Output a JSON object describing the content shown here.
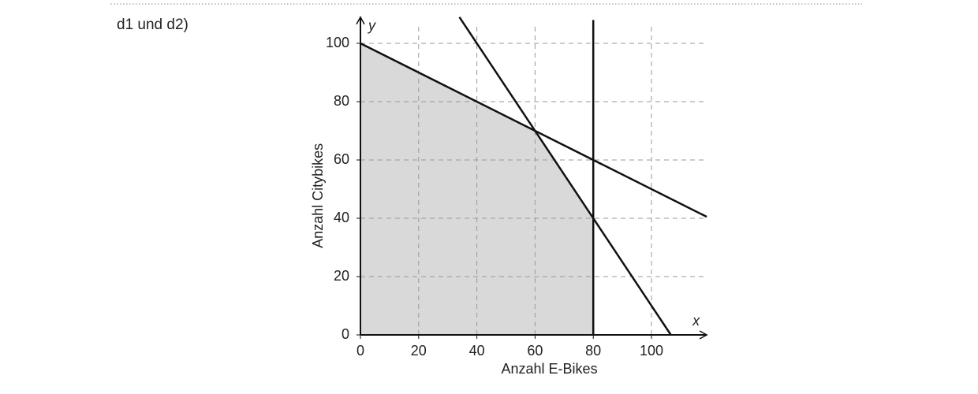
{
  "label": "d1 und d2)",
  "chart_data": {
    "type": "line",
    "x_label": "Anzahl E-Bikes",
    "y_label": "Anzahl Citybikes",
    "x_axis_letter": "x",
    "y_axis_letter": "y",
    "xlim": [
      0,
      119
    ],
    "ylim": [
      0,
      109
    ],
    "xticks": [
      0,
      20,
      40,
      60,
      80,
      100
    ],
    "yticks": [
      0,
      20,
      40,
      60,
      80,
      100
    ],
    "grid": true,
    "region": {
      "color": "#d9d9d9",
      "x": [
        0,
        0,
        60,
        80,
        80
      ],
      "y": [
        0,
        100,
        70,
        40,
        0
      ]
    },
    "series": [
      {
        "color": "#111111",
        "x": [
          0,
          119
        ],
        "values": [
          100,
          40.5
        ]
      },
      {
        "color": "#111111",
        "x": [
          34,
          106.67
        ],
        "values": [
          109,
          0
        ]
      },
      {
        "color": "#111111",
        "x": [
          80,
          80
        ],
        "values": [
          0,
          108
        ]
      }
    ]
  }
}
